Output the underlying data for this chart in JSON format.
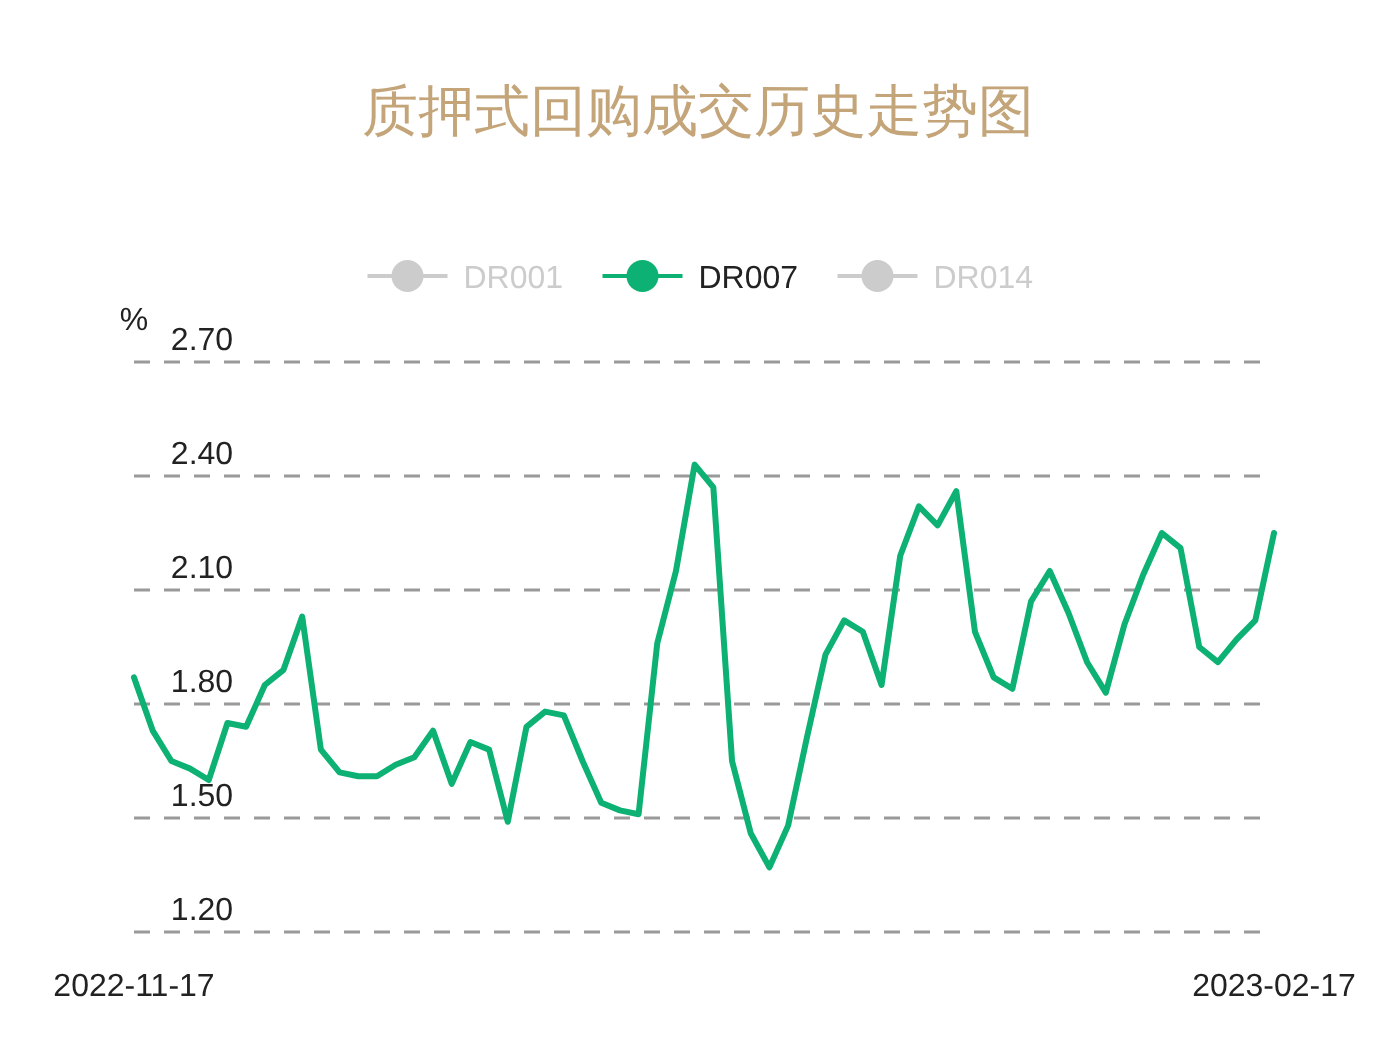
{
  "chart_data": {
    "type": "line",
    "title": "质押式回购成交历史走势图",
    "ylabel": "%",
    "categories": [
      "2022-11-17",
      null,
      null,
      null,
      null,
      null,
      null,
      null,
      null,
      null,
      null,
      null,
      null,
      null,
      null,
      null,
      null,
      null,
      null,
      null,
      null,
      null,
      null,
      null,
      null,
      null,
      null,
      null,
      null,
      null,
      null,
      null,
      null,
      null,
      null,
      null,
      null,
      null,
      null,
      null,
      null,
      null,
      null,
      null,
      null,
      null,
      null,
      null,
      null,
      null,
      null,
      null,
      null,
      null,
      null,
      null,
      null,
      null,
      null,
      null,
      null,
      "2023-02-17"
    ],
    "series": [
      {
        "name": "DR001",
        "color": "#cccccc",
        "values": [
          null,
          null,
          null,
          null,
          null,
          null,
          null,
          null,
          null,
          null,
          null,
          null,
          null,
          null,
          null,
          null,
          null,
          null,
          null,
          null,
          null,
          null,
          null,
          null,
          null,
          null,
          null,
          null,
          null,
          null,
          null,
          null,
          null,
          null,
          null,
          null,
          null,
          null,
          null,
          null,
          null,
          null,
          null,
          null,
          null,
          null,
          null,
          null,
          null,
          null,
          null,
          null,
          null,
          null,
          null,
          null,
          null,
          null,
          null,
          null,
          null,
          null
        ]
      },
      {
        "name": "DR007",
        "color": "#0cb173",
        "values": [
          1.87,
          1.73,
          1.65,
          1.63,
          1.6,
          1.75,
          1.74,
          1.85,
          1.89,
          2.03,
          1.68,
          1.62,
          1.61,
          1.61,
          1.64,
          1.66,
          1.73,
          1.59,
          1.7,
          1.68,
          1.49,
          1.74,
          1.78,
          1.77,
          1.65,
          1.54,
          1.52,
          1.51,
          1.96,
          2.15,
          2.43,
          2.37,
          1.65,
          1.46,
          1.37,
          1.48,
          1.71,
          1.93,
          2.02,
          1.99,
          1.85,
          2.19,
          2.32,
          2.27,
          2.36,
          1.99,
          1.87,
          1.84,
          2.07,
          2.15,
          2.04,
          1.91,
          1.83,
          2.01,
          2.14,
          2.25,
          2.21,
          1.95,
          1.91,
          1.97,
          2.02,
          2.25
        ]
      },
      {
        "name": "DR014",
        "color": "#cccccc",
        "values": [
          null,
          null,
          null,
          null,
          null,
          null,
          null,
          null,
          null,
          null,
          null,
          null,
          null,
          null,
          null,
          null,
          null,
          null,
          null,
          null,
          null,
          null,
          null,
          null,
          null,
          null,
          null,
          null,
          null,
          null,
          null,
          null,
          null,
          null,
          null,
          null,
          null,
          null,
          null,
          null,
          null,
          null,
          null,
          null,
          null,
          null,
          null,
          null,
          null,
          null,
          null,
          null,
          null,
          null,
          null,
          null,
          null,
          null,
          null,
          null,
          null,
          null
        ]
      }
    ],
    "ylim": [
      1.2,
      2.7
    ],
    "yticks": [
      {
        "value": 1.2,
        "label": "1.20"
      },
      {
        "value": 1.5,
        "label": "1.50"
      },
      {
        "value": 1.8,
        "label": "1.80"
      },
      {
        "value": 2.1,
        "label": "2.10"
      },
      {
        "value": 2.4,
        "label": "2.40"
      },
      {
        "value": 2.7,
        "label": "2.70"
      }
    ],
    "grid": "y",
    "legend": "top",
    "marker": "none",
    "line_style": "solid"
  }
}
